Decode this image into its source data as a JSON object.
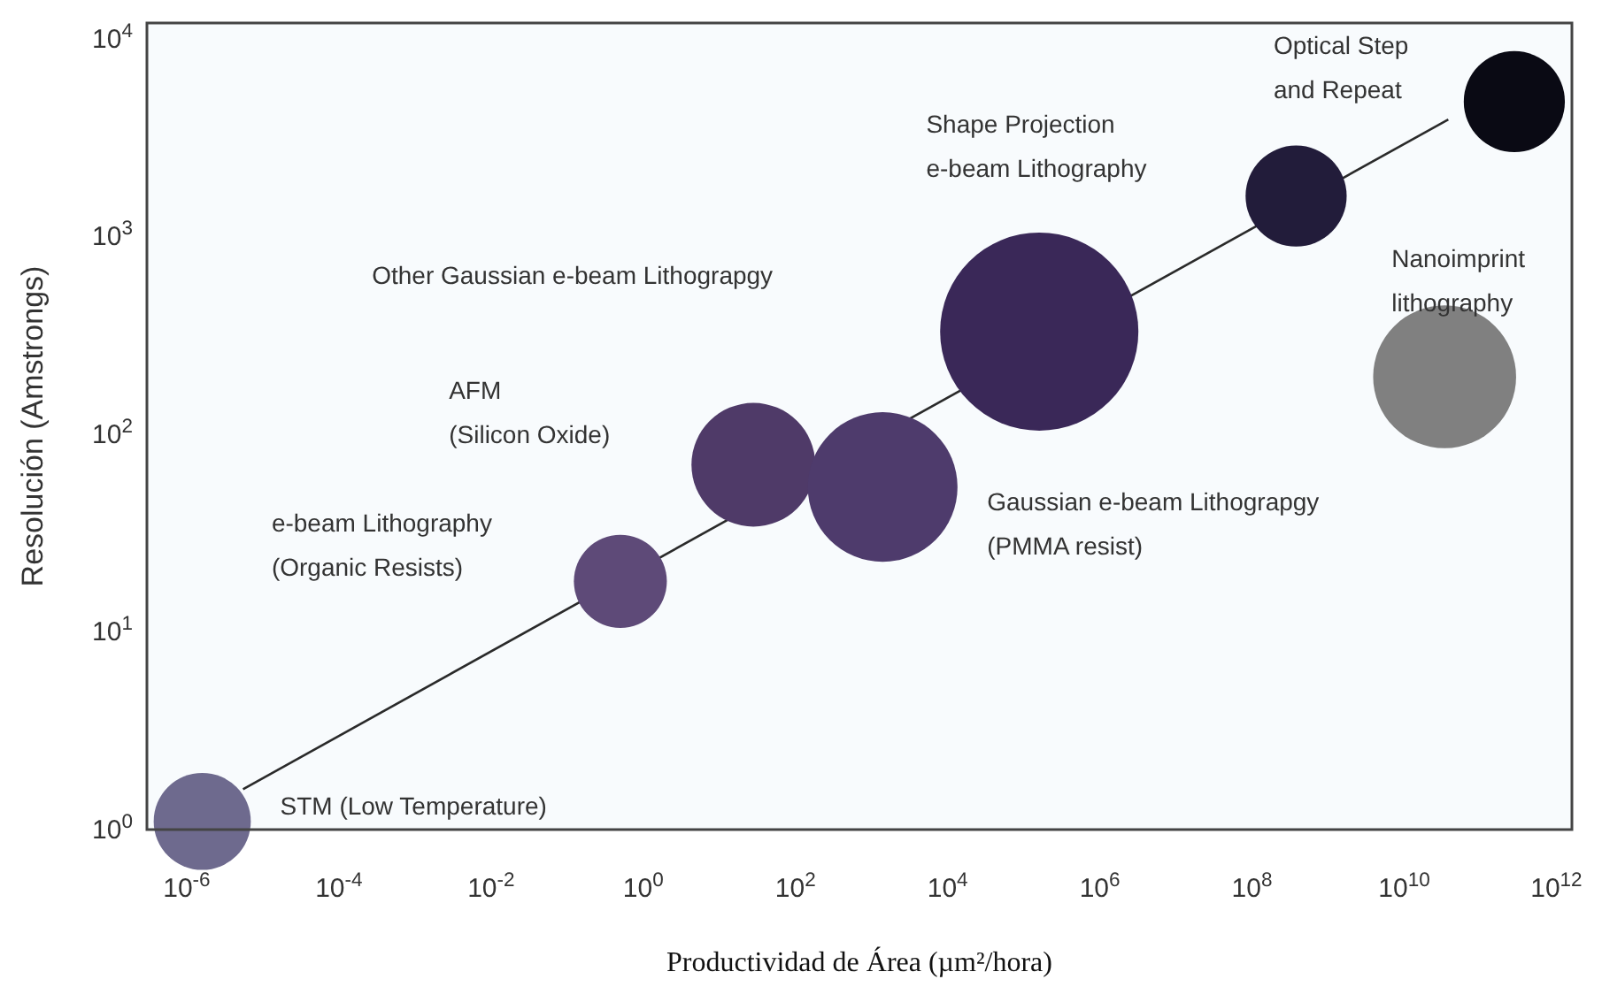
{
  "chart_data": {
    "type": "bubble",
    "xlabel": "Productividad de Área (µm²/hora)",
    "ylabel": "Resolución (Amstrongs)",
    "log": "xy",
    "grid": false,
    "xlim": [
      3e-07,
      1600000000000.0
    ],
    "ylim": [
      1,
      12000
    ],
    "xticks": [
      {
        "value": 1e-06,
        "label": "10$^{-6}$"
      },
      {
        "value": 0.0001,
        "label": "10$^{-4}$"
      },
      {
        "value": 0.01,
        "label": "10$^{-2}$"
      },
      {
        "value": 1,
        "label": "10$^{0}$"
      },
      {
        "value": 100,
        "label": "10$^{2}$"
      },
      {
        "value": 10000,
        "label": "10$^{4}$"
      },
      {
        "value": 1000000,
        "label": "10$^{6}$"
      },
      {
        "value": 100000000,
        "label": "10$^{8}$"
      },
      {
        "value": 10000000000,
        "label": "10$^{10}$"
      },
      {
        "value": 1000000000000,
        "label": "10$^{12}$"
      }
    ],
    "yticks": [
      {
        "value": 1,
        "label": "10$^{0}$"
      },
      {
        "value": 10,
        "label": "10$^{1}$"
      },
      {
        "value": 100,
        "label": "10$^{2}$"
      },
      {
        "value": 1000,
        "label": "10$^{3}$"
      },
      {
        "value": 10000,
        "label": "10$^{4}$"
      }
    ],
    "series": [
      {
        "type": "line",
        "color": "#2a2a2a",
        "x": [
          5.5e-06,
          38000000000.0
        ],
        "values": [
          1.6,
          3900
        ]
      },
      {
        "colors": [
          "#6e6a8e",
          "#5e4a78",
          "#4f3a68",
          "#4e3b6c",
          "#3a2858",
          "#221c3a",
          "#0a0a14",
          "#808080"
        ],
        "x": [
          1.6e-06,
          0.5,
          28,
          1400,
          160000,
          380000000,
          280000000000,
          34000000000
        ],
        "values": [
          1.1,
          18,
          70,
          54,
          330,
          1600,
          4800,
          195
        ],
        "sizes": [
          0.24,
          0.22,
          0.39,
          0.57,
          1,
          0.26,
          0.26,
          0.52
        ]
      }
    ],
    "annotations": [
      "STM (Low Temperature)",
      "e-beam Lithography\n(Organic Resists)",
      "AFM\n(Silicon Oxide)",
      "Gaussian e-beam Lithograpgy\n(PMMA resist)",
      "Other Gaussian e-beam Lithograpgy",
      "Shape Projection\ne-beam Lithography",
      "Optical Step\nand Repeat",
      "Nanoimprint\nlithography"
    ]
  }
}
